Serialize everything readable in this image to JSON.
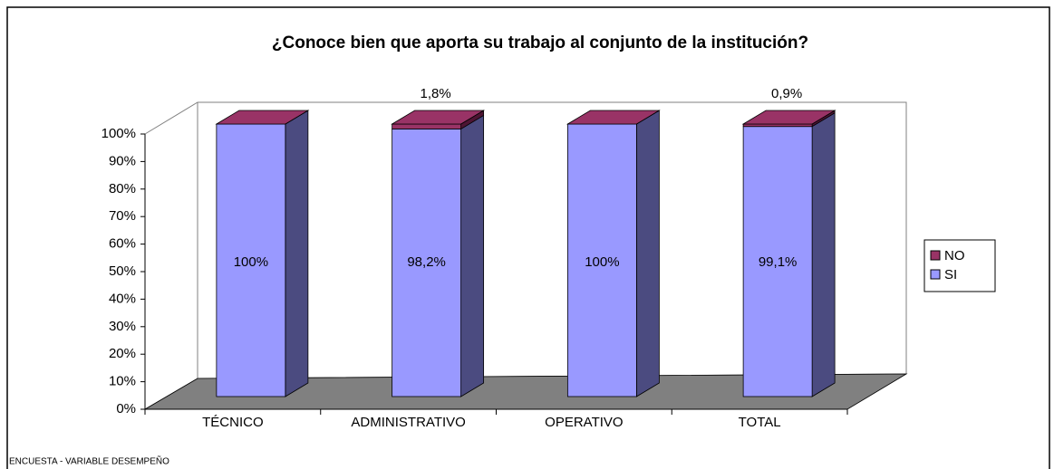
{
  "chart_data": {
    "type": "bar3d_stacked",
    "title": "¿Conoce bien que aporta su trabajo al conjunto de la institución?",
    "categories": [
      "TÉCNICO",
      "ADMINISTRATIVO",
      "OPERATIVO",
      "TOTAL"
    ],
    "series": [
      {
        "name": "SI",
        "color": "#9999ff",
        "side_color": "#4b4b80",
        "values": [
          100,
          98.2,
          100,
          99.1
        ],
        "value_labels": [
          "100%",
          "98,2%",
          "100%",
          "99,1%"
        ]
      },
      {
        "name": "NO",
        "color": "#993366",
        "side_color": "#4d1433",
        "values": [
          0,
          1.8,
          0,
          0.9
        ],
        "value_labels": [
          null,
          "1,8%",
          null,
          "0,9%"
        ]
      }
    ],
    "ylim": [
      0,
      100
    ],
    "yticks": [
      {
        "value": 0,
        "label": "0%"
      },
      {
        "value": 10,
        "label": "10%"
      },
      {
        "value": 20,
        "label": "20%"
      },
      {
        "value": 30,
        "label": "30%"
      },
      {
        "value": 40,
        "label": "40%"
      },
      {
        "value": 50,
        "label": "50%"
      },
      {
        "value": 60,
        "label": "60%"
      },
      {
        "value": 70,
        "label": "70%"
      },
      {
        "value": 80,
        "label": "80%"
      },
      {
        "value": 90,
        "label": "90%"
      },
      {
        "value": 100,
        "label": "100%"
      }
    ],
    "legend": "right",
    "footer": "ENCUESTA - VARIABLE DESEMPEÑO"
  }
}
